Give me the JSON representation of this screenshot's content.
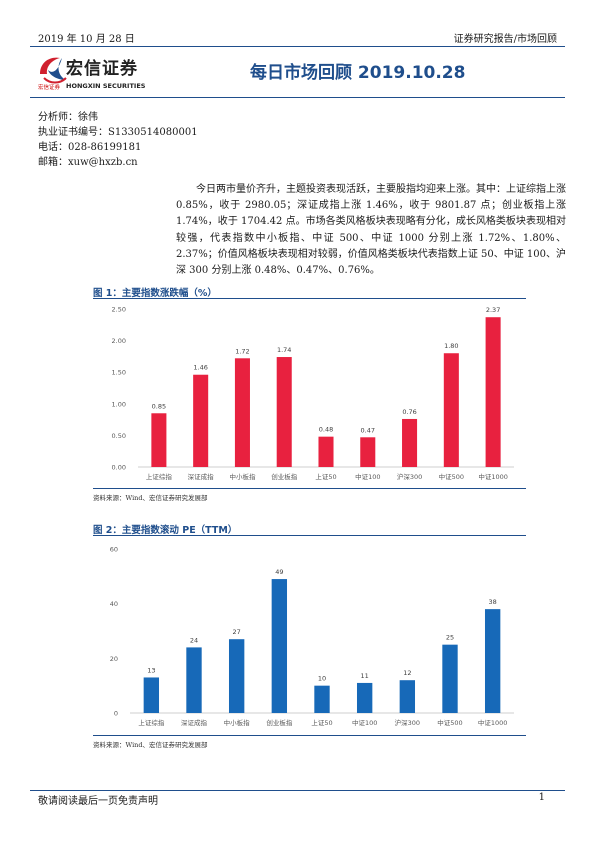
{
  "header": {
    "date": "2019 年 10 月 28 日",
    "report_type": "证券研究报告/市场回顾"
  },
  "logo": {
    "name_cn": "宏信证券",
    "sub_cn": "宏信证券",
    "sub_en": "HONGXIN SECURITIES",
    "colors": {
      "red": "#d0202e",
      "blue": "#1f4e8c"
    }
  },
  "title": "每日市场回顾 2019.10.28",
  "analyst": {
    "name": "分析师：徐伟",
    "cert": "执业证书编号：S1330514080001",
    "phone": "电话：028-86199181",
    "email": "邮箱：xuw@hxzb.cn"
  },
  "paragraph": "今日两市量价齐升，主题投资表现活跃，主要股指均迎来上涨。其中：上证综指上涨 0.85%，收于 2980.05；深证成指上涨 1.46%，收于 9801.87 点；创业板指上涨 1.74%，收于 1704.42 点。市场各类风格板块表现略有分化，成长风格类板块表现相对较强，代表指数中小板指、中证 500、中证 1000 分别上涨 1.72%、1.80%、2.37%；价值风格板块表现相对较弱，价值风格类板块代表指数上证 50、中证 100、沪深 300 分别上涨 0.48%、0.47%、0.76%。",
  "figures": [
    {
      "title": "图 1：主要指数涨跌幅（%）",
      "source": "资料来源：Wind、宏信证券研究发展部"
    },
    {
      "title": "图 2：主要指数滚动 PE（TTM）",
      "source": "资料来源：Wind、宏信证券研究发展部"
    }
  ],
  "chart_data": [
    {
      "type": "bar",
      "categories": [
        "上证综指",
        "深证成指",
        "中小板指",
        "创业板指",
        "上证50",
        "中证100",
        "沪深300",
        "中证500",
        "中证1000"
      ],
      "values": [
        0.85,
        1.46,
        1.72,
        1.74,
        0.48,
        0.47,
        0.76,
        1.8,
        2.37
      ],
      "value_labels": [
        "0.85",
        "1.46",
        "1.72",
        "1.74",
        "0.48",
        "0.47",
        "0.76",
        "1.80",
        "2.37"
      ],
      "ylim": [
        0,
        2.5
      ],
      "yticks": [
        "0.00",
        "0.50",
        "1.00",
        "1.50",
        "2.00",
        "2.50"
      ],
      "color": "#e8213f",
      "grid": false
    },
    {
      "type": "bar",
      "categories": [
        "上证综指",
        "深证成指",
        "中小板指",
        "创业板指",
        "上证50",
        "中证100",
        "沪深300",
        "中证500",
        "中证1000"
      ],
      "values": [
        13,
        24,
        27,
        49,
        10,
        11,
        12,
        25,
        38
      ],
      "value_labels": [
        "13",
        "24",
        "27",
        "49",
        "10",
        "11",
        "12",
        "25",
        "38"
      ],
      "ylim": [
        0,
        60
      ],
      "yticks": [
        "0",
        "20",
        "40",
        "60"
      ],
      "color": "#1769b8",
      "grid": false
    }
  ],
  "footer": {
    "disclaimer": "敬请阅读最后一页免责声明",
    "page": "1"
  }
}
